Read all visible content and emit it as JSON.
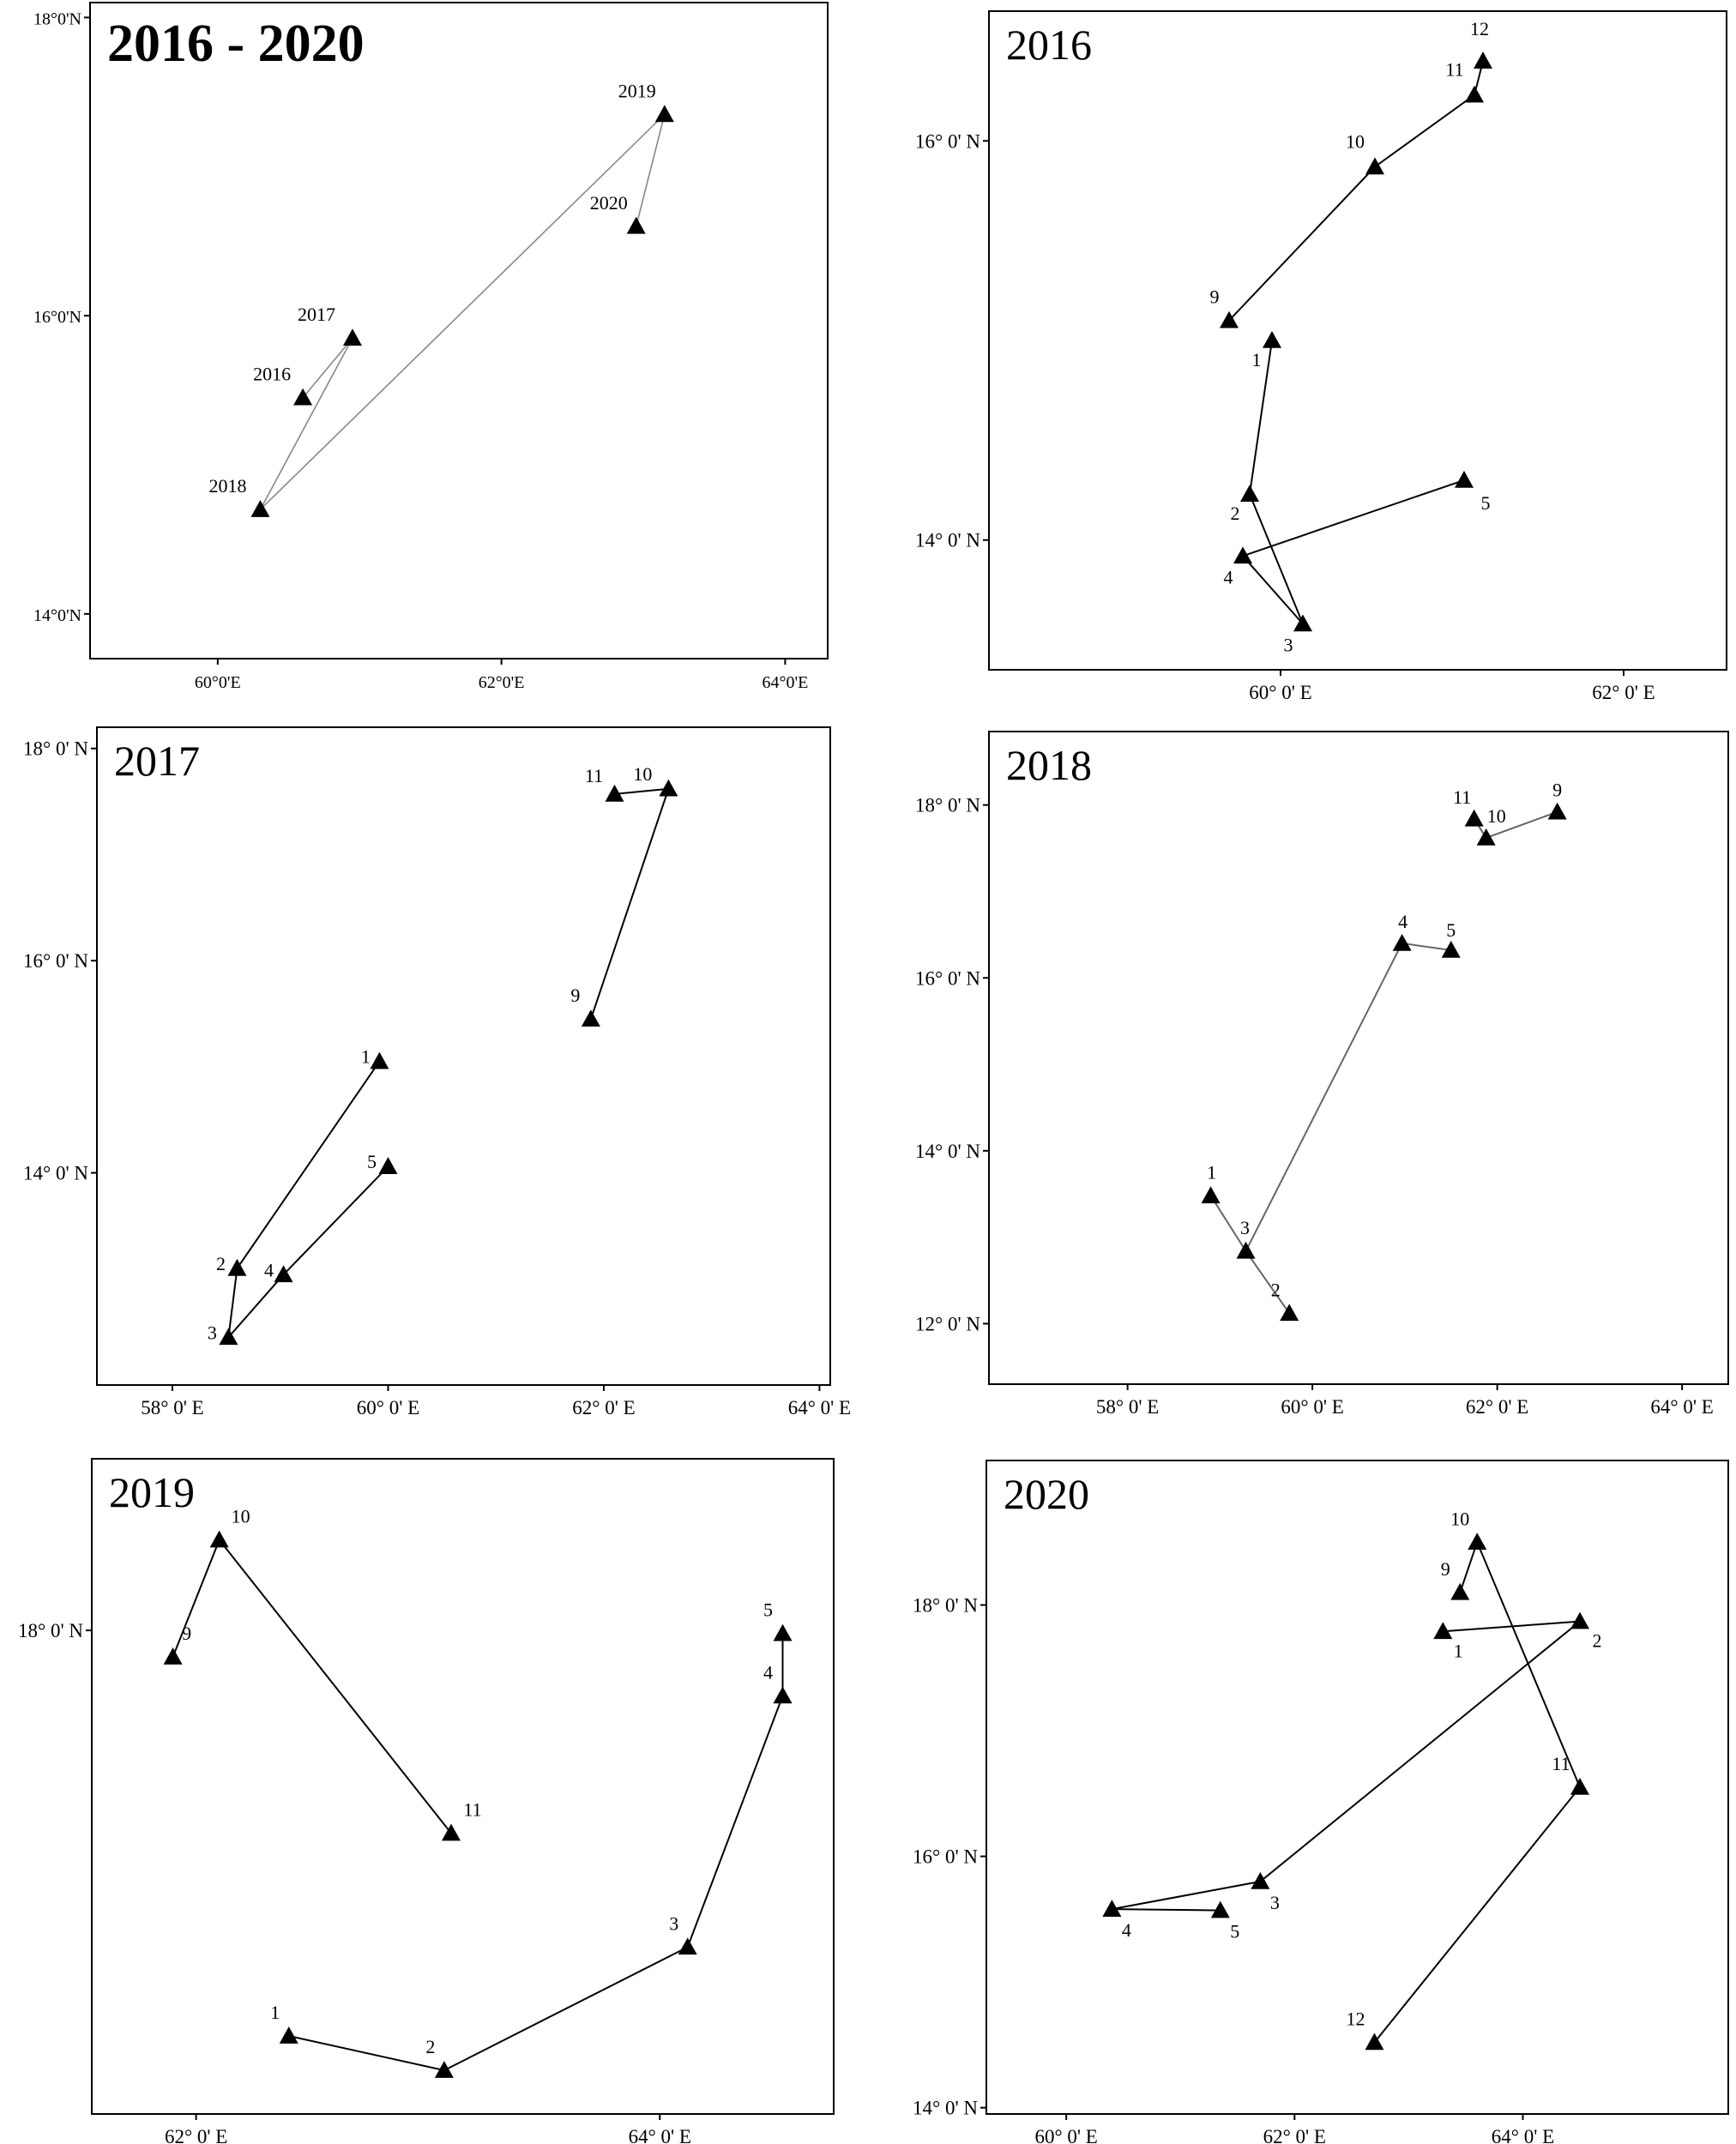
{
  "chart_data": [
    {
      "type": "line",
      "title": "2016 - 2020",
      "xlabel": "",
      "ylabel": "",
      "x_ticks": [
        {
          "value": 60,
          "label": "60°0'E"
        },
        {
          "value": 62,
          "label": "62°0'E"
        },
        {
          "value": 64,
          "label": "64°0'E"
        }
      ],
      "y_ticks": [
        {
          "value": 14,
          "label": "14°0'N"
        },
        {
          "value": 16,
          "label": "16°0'N"
        },
        {
          "value": 18,
          "label": "18°0'N"
        }
      ],
      "xlim": [
        59.1,
        64.3
      ],
      "ylim": [
        13.7,
        18.1
      ],
      "grid": false,
      "line_color": "#888888",
      "points": [
        {
          "label": "2016",
          "x": 60.6,
          "y": 15.45
        },
        {
          "label": "2017",
          "x": 60.95,
          "y": 15.85
        },
        {
          "label": "2018",
          "x": 60.3,
          "y": 14.7
        },
        {
          "label": "2019",
          "x": 63.15,
          "y": 17.35
        },
        {
          "label": "2020",
          "x": 62.95,
          "y": 16.6
        }
      ]
    },
    {
      "type": "line",
      "title": "2016",
      "xlabel": "",
      "ylabel": "",
      "x_ticks": [
        {
          "value": 60,
          "label": "60° 0' E"
        },
        {
          "value": 62,
          "label": "62° 0' E"
        }
      ],
      "y_ticks": [
        {
          "value": 14,
          "label": "14° 0' N"
        },
        {
          "value": 16,
          "label": "16° 0' N"
        }
      ],
      "xlim": [
        58.3,
        62.6
      ],
      "ylim": [
        13.35,
        16.65
      ],
      "grid": false,
      "line_color": "#000000",
      "segments": [
        [
          0,
          1,
          2,
          3,
          4
        ],
        [
          5,
          6,
          7,
          8
        ]
      ],
      "points": [
        {
          "label": "1",
          "x": 59.95,
          "y": 15.0
        },
        {
          "label": "2",
          "x": 59.82,
          "y": 14.23
        },
        {
          "label": "3",
          "x": 60.13,
          "y": 13.58
        },
        {
          "label": "4",
          "x": 59.78,
          "y": 13.92
        },
        {
          "label": "5",
          "x": 61.07,
          "y": 14.3
        },
        {
          "label": "9",
          "x": 59.7,
          "y": 15.1
        },
        {
          "label": "10",
          "x": 60.55,
          "y": 15.87
        },
        {
          "label": "11",
          "x": 61.13,
          "y": 16.23
        },
        {
          "label": "12",
          "x": 61.18,
          "y": 16.4
        }
      ]
    },
    {
      "type": "line",
      "title": "2017",
      "xlabel": "",
      "ylabel": "",
      "x_ticks": [
        {
          "value": 58,
          "label": "58° 0' E"
        },
        {
          "value": 60,
          "label": "60° 0' E"
        },
        {
          "value": 62,
          "label": "62° 0' E"
        },
        {
          "value": 64,
          "label": "64° 0' E"
        }
      ],
      "y_ticks": [
        {
          "value": 14,
          "label": "14° 0' N"
        },
        {
          "value": 16,
          "label": "16° 0' N"
        },
        {
          "value": 18,
          "label": "18° 0' N"
        }
      ],
      "xlim": [
        57.3,
        64.1
      ],
      "ylim": [
        12.0,
        18.2
      ],
      "grid": false,
      "line_color": "#000000",
      "segments": [
        [
          0,
          1,
          2,
          3,
          4
        ],
        [
          5,
          6,
          7
        ]
      ],
      "points": [
        {
          "label": "1",
          "x": 59.92,
          "y": 15.05
        },
        {
          "label": "2",
          "x": 58.6,
          "y": 13.1
        },
        {
          "label": "3",
          "x": 58.52,
          "y": 12.45
        },
        {
          "label": "4",
          "x": 59.03,
          "y": 13.04
        },
        {
          "label": "5",
          "x": 60.0,
          "y": 14.06
        },
        {
          "label": "9",
          "x": 61.88,
          "y": 15.45
        },
        {
          "label": "10",
          "x": 62.6,
          "y": 17.62
        },
        {
          "label": "11",
          "x": 62.1,
          "y": 17.57
        }
      ]
    },
    {
      "type": "line",
      "title": "2018",
      "xlabel": "",
      "ylabel": "",
      "x_ticks": [
        {
          "value": 58,
          "label": "58° 0' E"
        },
        {
          "value": 60,
          "label": "60° 0' E"
        },
        {
          "value": 62,
          "label": "62° 0' E"
        },
        {
          "value": 64,
          "label": "64° 0' E"
        }
      ],
      "y_ticks": [
        {
          "value": 12,
          "label": "12° 0' N"
        },
        {
          "value": 14,
          "label": "14° 0' N"
        },
        {
          "value": 16,
          "label": "16° 0' N"
        },
        {
          "value": 18,
          "label": "18° 0' N"
        }
      ],
      "xlim": [
        56.5,
        64.5
      ],
      "ylim": [
        11.3,
        18.85
      ],
      "grid": false,
      "line_color": "#666666",
      "segments": [
        [
          0,
          2,
          1
        ],
        [
          2,
          3,
          4
        ],
        [
          5,
          6,
          7
        ]
      ],
      "points": [
        {
          "label": "1",
          "x": 58.9,
          "y": 13.48
        },
        {
          "label": "2",
          "x": 59.75,
          "y": 12.12
        },
        {
          "label": "3",
          "x": 59.28,
          "y": 12.84
        },
        {
          "label": "4",
          "x": 60.97,
          "y": 16.4
        },
        {
          "label": "5",
          "x": 61.5,
          "y": 16.32
        },
        {
          "label": "9",
          "x": 62.65,
          "y": 17.92
        },
        {
          "label": "10",
          "x": 61.88,
          "y": 17.62
        },
        {
          "label": "11",
          "x": 61.75,
          "y": 17.84
        }
      ]
    },
    {
      "type": "line",
      "title": "2019",
      "xlabel": "",
      "ylabel": "",
      "x_ticks": [
        {
          "value": 62,
          "label": "62° 0' E"
        },
        {
          "value": 64,
          "label": "64° 0' E"
        }
      ],
      "y_ticks": [
        {
          "value": 18,
          "label": "18° 0' N"
        }
      ],
      "xlim": [
        61.55,
        64.75
      ],
      "ylim": [
        14.9,
        19.1
      ],
      "grid": false,
      "line_color": "#000000",
      "segments": [
        [
          0,
          1,
          2,
          3,
          4
        ],
        [
          5,
          6,
          7
        ]
      ],
      "points": [
        {
          "label": "1",
          "x": 62.4,
          "y": 15.4
        },
        {
          "label": "2",
          "x": 63.07,
          "y": 15.18
        },
        {
          "label": "3",
          "x": 64.12,
          "y": 15.97
        },
        {
          "label": "4",
          "x": 64.53,
          "y": 17.58
        },
        {
          "label": "5",
          "x": 64.53,
          "y": 17.98
        },
        {
          "label": "9",
          "x": 61.9,
          "y": 17.83
        },
        {
          "label": "10",
          "x": 62.1,
          "y": 18.58
        },
        {
          "label": "11",
          "x": 63.1,
          "y": 16.7
        }
      ]
    },
    {
      "type": "line",
      "title": "2020",
      "xlabel": "",
      "ylabel": "",
      "x_ticks": [
        {
          "value": 60,
          "label": "60° 0' E"
        },
        {
          "value": 62,
          "label": "62° 0' E"
        },
        {
          "value": 64,
          "label": "64° 0' E"
        }
      ],
      "y_ticks": [
        {
          "value": 14,
          "label": "14° 0' N"
        },
        {
          "value": 16,
          "label": "16° 0' N"
        },
        {
          "value": 18,
          "label": "18° 0' N"
        }
      ],
      "xlim": [
        59.3,
        65.8
      ],
      "ylim": [
        13.95,
        19.15
      ],
      "grid": false,
      "line_color": "#000000",
      "segments": [
        [
          0,
          1,
          2,
          3,
          4
        ],
        [
          5,
          6,
          7,
          8
        ]
      ],
      "points": [
        {
          "label": "1",
          "x": 63.3,
          "y": 17.79
        },
        {
          "label": "2",
          "x": 64.5,
          "y": 17.87
        },
        {
          "label": "3",
          "x": 61.7,
          "y": 15.8
        },
        {
          "label": "4",
          "x": 60.4,
          "y": 15.58
        },
        {
          "label": "5",
          "x": 61.35,
          "y": 15.57
        },
        {
          "label": "9",
          "x": 63.45,
          "y": 18.1
        },
        {
          "label": "10",
          "x": 63.6,
          "y": 18.5
        },
        {
          "label": "11",
          "x": 64.5,
          "y": 16.55
        },
        {
          "label": "12",
          "x": 62.7,
          "y": 14.52
        }
      ]
    }
  ]
}
